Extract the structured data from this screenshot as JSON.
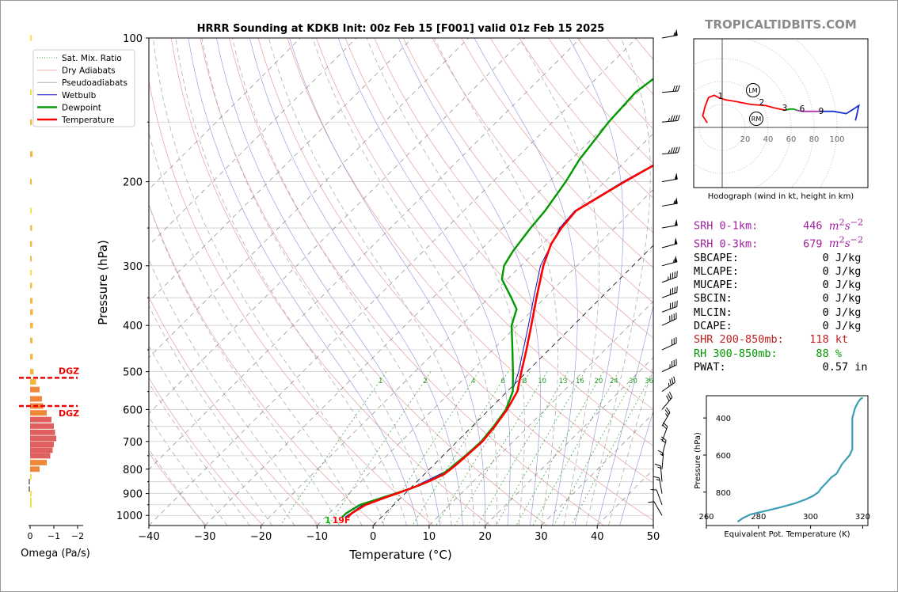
{
  "brand": "TROPICALTIDBITS.COM",
  "chart_data": [
    {
      "type": "line",
      "chart_kind": "skew-T log-P sounding",
      "title": "HRRR Sounding at KDKB Init: 00z Feb 15 [F001] valid 01z Feb 15 2025",
      "xlabel": "Temperature (°C)",
      "ylabel": "Pressure (hPa)",
      "xlim": [
        -40,
        50
      ],
      "ylim": [
        1050,
        100
      ],
      "y_scale": "log",
      "x_ticks": [
        "−40",
        "−30",
        "−20",
        "−10",
        "0",
        "10",
        "20",
        "30",
        "40",
        "50"
      ],
      "y_ticks": [
        "100",
        "200",
        "300",
        "400",
        "500",
        "600",
        "700",
        "800",
        "900",
        "1000"
      ],
      "legend": {
        "placement": "upper-left",
        "entries": [
          "Sat. Mix. Ratio",
          "Dry Adiabats",
          "Pseudoadiabats",
          "Wetbulb",
          "Dewpoint",
          "Temperature"
        ]
      },
      "colors": {
        "temperature": "#ff0000",
        "dewpoint": "#009900",
        "wetbulb": "#1010c0",
        "dry_adiabats": "#e4a0a0",
        "pseudoadiabats": "#b0b0b0",
        "sat_mix_ratio": "#44aa44",
        "isotherms": "#555555"
      },
      "mixing_ratio_labels": [
        "1",
        "2",
        "4",
        "6",
        "8",
        "10",
        "13",
        "16",
        "20",
        "24",
        "30",
        "36"
      ],
      "surface_label": "1",
      "surface_temp_label": "19F",
      "series": [
        {
          "name": "Temperature",
          "p": [
            1010,
            990,
            970,
            950,
            920,
            880,
            850,
            820,
            800,
            780,
            750,
            720,
            700,
            650,
            600,
            550,
            500,
            450,
            400,
            350,
            300,
            270,
            250,
            230,
            200,
            180,
            150,
            130,
            110,
            100
          ],
          "t": [
            -6,
            -6,
            -5.5,
            -5,
            -3,
            0,
            2,
            3.5,
            3.8,
            4,
            4.2,
            4.4,
            4.5,
            4,
            3.2,
            1.8,
            -1,
            -4,
            -7.5,
            -11.5,
            -16,
            -18.5,
            -19.5,
            -20,
            -16.5,
            -13.5,
            -8,
            -3.5,
            0,
            1.5
          ]
        },
        {
          "name": "Dewpoint",
          "p": [
            1010,
            990,
            970,
            950,
            920,
            880,
            850,
            820,
            800,
            780,
            750,
            720,
            700,
            650,
            600,
            550,
            500,
            450,
            400,
            370,
            350,
            320,
            300,
            280,
            250,
            230,
            200,
            180,
            150,
            130,
            110,
            100
          ],
          "t": [
            -7,
            -7,
            -6.5,
            -6,
            -3.5,
            0,
            2,
            3.2,
            3.5,
            3.7,
            4,
            4.2,
            4.3,
            3.8,
            3,
            1,
            -2.5,
            -6.5,
            -11,
            -13,
            -16,
            -21,
            -23,
            -24,
            -25,
            -25.5,
            -27,
            -28.5,
            -30,
            -30.5,
            -28.5,
            -25
          ]
        },
        {
          "name": "Wetbulb",
          "p": [
            1010,
            950,
            880,
            800,
            700,
            600,
            500,
            400,
            350,
            300,
            250,
            230,
            200,
            150,
            110,
            100
          ],
          "t": [
            -6.5,
            -5.5,
            0,
            3.7,
            4.4,
            3.1,
            -1.5,
            -8,
            -12,
            -16.5,
            -19.8,
            -20.2,
            -16.8,
            -8.2,
            0,
            1.5
          ]
        }
      ]
    },
    {
      "type": "bar",
      "xlabel": "Omega (Pa/s)",
      "x_ticks": [
        "0",
        "−1",
        "−2"
      ],
      "xlim": [
        0.2,
        -2.2
      ],
      "dgz_label": "DGZ",
      "dgz_levels_hpa": [
        515,
        590
      ],
      "p": [
        100,
        130,
        150,
        175,
        200,
        230,
        250,
        270,
        290,
        310,
        330,
        355,
        375,
        400,
        430,
        465,
        500,
        525,
        545,
        570,
        590,
        610,
        630,
        650,
        670,
        690,
        710,
        730,
        750,
        775,
        800,
        830,
        850,
        880,
        900,
        930,
        950
      ],
      "values": [
        -0.02,
        -0.05,
        -0.08,
        -0.1,
        -0.06,
        -0.01,
        -0.08,
        -0.08,
        -0.06,
        -0.05,
        -0.08,
        -0.1,
        -0.12,
        -0.12,
        -0.1,
        -0.11,
        -0.15,
        -0.25,
        -0.4,
        -0.5,
        -0.55,
        -0.7,
        -0.9,
        -1,
        -1.05,
        -1.1,
        -1,
        -0.95,
        -0.85,
        -0.7,
        -0.4,
        -0.05,
        0.03,
        0.02,
        -0.03,
        -0.01,
        -0.05
      ]
    },
    {
      "type": "line",
      "title": "Hodograph (wind in kt, height in km)",
      "rings_kt": [
        "20",
        "40",
        "60",
        "80",
        "100"
      ],
      "markers": [
        "LM",
        "RM"
      ],
      "height_labels": [
        "1",
        "2",
        "3",
        "6",
        "9"
      ],
      "points_kt": [
        [
          -13,
          4
        ],
        [
          -15,
          7
        ],
        [
          -17,
          10
        ],
        [
          -15,
          18
        ],
        [
          -12,
          26
        ],
        [
          -7,
          28
        ],
        [
          -3,
          26
        ],
        [
          3,
          24
        ],
        [
          10,
          23
        ],
        [
          25,
          20
        ],
        [
          38,
          19
        ],
        [
          45,
          17
        ],
        [
          55,
          15
        ],
        [
          59,
          16
        ],
        [
          62,
          16
        ],
        [
          65,
          15
        ],
        [
          70,
          14
        ],
        [
          75,
          14
        ],
        [
          85,
          14
        ],
        [
          97,
          14
        ],
        [
          108,
          12
        ],
        [
          116,
          17
        ],
        [
          119,
          19
        ],
        [
          117,
          10
        ],
        [
          116,
          6
        ]
      ]
    },
    {
      "type": "line",
      "xlabel": "Equivalent Pot. Temperature (K)",
      "ylabel": "Pressure (hPa)",
      "xlim": [
        260,
        322
      ],
      "ylim": [
        980,
        280
      ],
      "x_ticks": [
        "260",
        "280",
        "300",
        "320"
      ],
      "y_ticks": [
        "400",
        "600",
        "800"
      ],
      "color": "#3a9fb5",
      "p": [
        960,
        940,
        920,
        900,
        880,
        860,
        840,
        820,
        800,
        780,
        750,
        720,
        700,
        650,
        600,
        570,
        550,
        500,
        450,
        400,
        350,
        320,
        300,
        290
      ],
      "theta_e": [
        272,
        274,
        277,
        283,
        289,
        294,
        298,
        301,
        303,
        304,
        306,
        308,
        310,
        312,
        315,
        316,
        316,
        316,
        316,
        316,
        317,
        318,
        319,
        320
      ]
    }
  ],
  "stats": [
    {
      "label": "SRH 0-1km:",
      "value": "446",
      "unit_html": "<i>m</i><sup>2</sup><i>s</i><sup>−2</sup>",
      "color": "#a020a0"
    },
    {
      "label": "SRH 0-3km:",
      "value": "679",
      "unit_html": "<i>m</i><sup>2</sup><i>s</i><sup>−2</sup>",
      "color": "#a020a0"
    },
    {
      "label": "SBCAPE:",
      "value": "0",
      "unit": "J/kg",
      "color": "#000000"
    },
    {
      "label": "MLCAPE:",
      "value": "0",
      "unit": "J/kg",
      "color": "#000000"
    },
    {
      "label": "MUCAPE:",
      "value": "0",
      "unit": "J/kg",
      "color": "#000000"
    },
    {
      "label": "SBCIN:",
      "value": "0",
      "unit": "J/kg",
      "color": "#000000"
    },
    {
      "label": "MLCIN:",
      "value": "0",
      "unit": "J/kg",
      "color": "#000000"
    },
    {
      "label": "DCAPE:",
      "value": "0",
      "unit": "J/kg",
      "color": "#000000"
    },
    {
      "label": "SHR 200-850mb:",
      "value": "118",
      "unit": "kt",
      "color": "#c02020"
    },
    {
      "label": "RH 300-850mb:",
      "value": "88",
      "unit": "%",
      "color": "#009900"
    },
    {
      "label": "PWAT:",
      "value": "0.57",
      "unit": "in",
      "color": "#000000"
    }
  ],
  "wind_barbs": {
    "p": [
      100,
      130,
      150,
      175,
      200,
      225,
      250,
      275,
      300,
      325,
      350,
      375,
      400,
      450,
      500,
      550,
      600,
      650,
      700,
      750,
      800,
      850,
      900,
      950,
      1000
    ],
    "speed_kt": [
      55,
      30,
      45,
      45,
      50,
      55,
      50,
      50,
      55,
      45,
      40,
      40,
      40,
      30,
      35,
      35,
      30,
      25,
      20,
      20,
      15,
      15,
      15,
      10,
      10
    ],
    "dir_deg": [
      260,
      265,
      265,
      265,
      260,
      260,
      260,
      255,
      255,
      250,
      250,
      250,
      245,
      245,
      245,
      235,
      220,
      210,
      200,
      195,
      185,
      175,
      170,
      160,
      150
    ]
  }
}
